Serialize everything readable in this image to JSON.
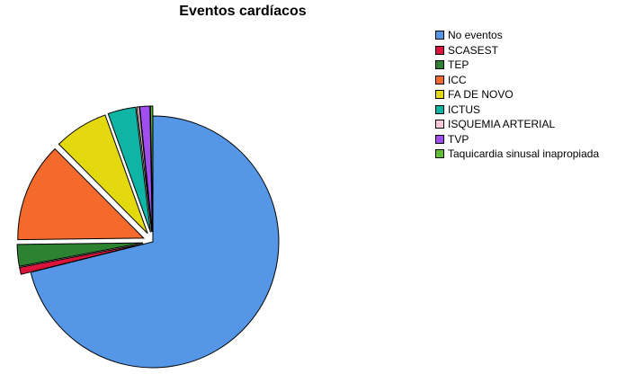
{
  "chart_data": {
    "type": "pie",
    "title": "Eventos cardíacos",
    "legend_position": "right",
    "slices": [
      {
        "label": "No eventos",
        "value": 71.4,
        "color": "#5596e6",
        "exploded": false
      },
      {
        "label": "SCASEST",
        "value": 0.9,
        "color": "#dc143c",
        "exploded": true
      },
      {
        "label": "TEP",
        "value": 2.8,
        "color": "#2d8232",
        "exploded": true
      },
      {
        "label": "ICC",
        "value": 12.8,
        "color": "#f46a2c",
        "exploded": true
      },
      {
        "label": "FA DE NOVO",
        "value": 7.0,
        "color": "#e4d90e",
        "exploded": true
      },
      {
        "label": "ICTUS",
        "value": 3.6,
        "color": "#0fb5a4",
        "exploded": true
      },
      {
        "label": "ISQUEMIA ARTERIAL",
        "value": 0.3,
        "color": "#fcc8dc",
        "exploded": true
      },
      {
        "label": "TVP",
        "value": 1.3,
        "color": "#a04ef0",
        "exploded": true
      },
      {
        "label": "Taquicardia sinusal inapropiada",
        "value": 0.3,
        "color": "#5fbe36",
        "exploded": true
      }
    ]
  }
}
